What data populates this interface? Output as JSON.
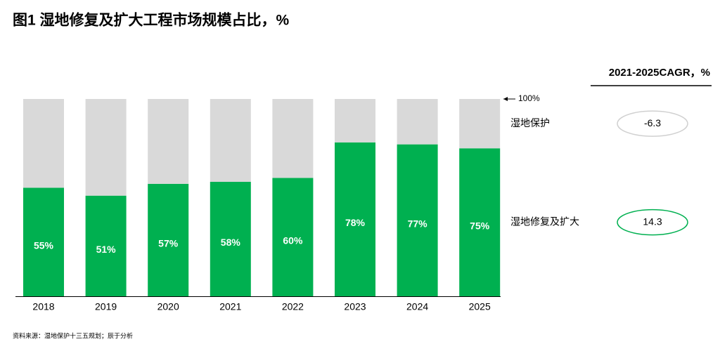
{
  "chart_data": {
    "type": "bar",
    "stacked": true,
    "title": "图1 湿地修复及扩大工程市场规模占比，%",
    "categories": [
      "2018",
      "2019",
      "2020",
      "2021",
      "2022",
      "2023",
      "2024",
      "2025"
    ],
    "series": [
      {
        "name": "湿地修复及扩大",
        "color": "#00b050",
        "values": [
          55,
          51,
          57,
          58,
          60,
          78,
          77,
          75
        ],
        "value_labels": [
          "55%",
          "51%",
          "57%",
          "58%",
          "60%",
          "78%",
          "77%",
          "75%"
        ],
        "cagr": 14.3
      },
      {
        "name": "湿地保护",
        "color": "#d9d9d9",
        "values": [
          45,
          49,
          43,
          42,
          40,
          22,
          23,
          25
        ],
        "cagr": -6.3
      }
    ],
    "cagr_title": "2021-2025CAGR，%",
    "ylim": [
      0,
      100
    ],
    "yticks": [
      {
        "value": 100,
        "label": "100%"
      }
    ],
    "source": "资料来源：湿地保护十三五规划；辰于分析"
  }
}
